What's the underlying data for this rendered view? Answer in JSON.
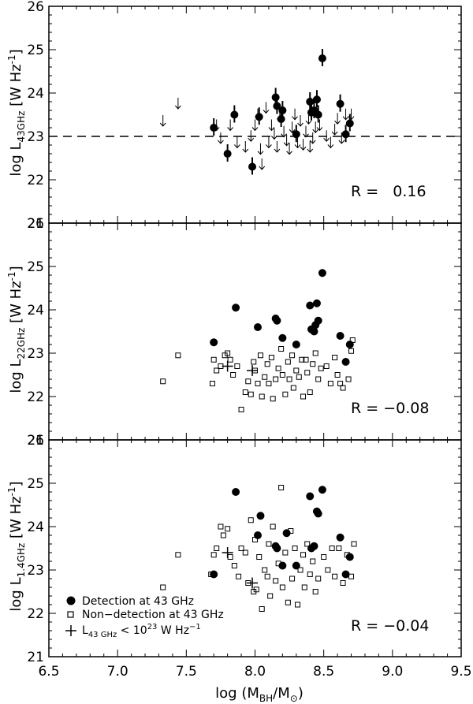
{
  "chart_data": {
    "type": "scatter",
    "xlabel_parts": [
      "log (M",
      "BH",
      "/M",
      "⊙",
      ")"
    ],
    "xlim": [
      6.5,
      9.5
    ],
    "x_ticks": [
      "6.5",
      "7.0",
      "7.5",
      "8.0",
      "8.5",
      "9.0",
      "9.5"
    ],
    "x_tick_values": [
      6.5,
      7.0,
      7.5,
      8.0,
      8.5,
      9.0,
      9.5
    ],
    "panels": [
      {
        "name": "43GHz",
        "ylabel_parts": [
          "log L",
          "43GHz",
          " [W Hz",
          "-1",
          "]"
        ],
        "ylim": [
          21,
          26
        ],
        "y_ticks": [
          "21",
          "22",
          "23",
          "24",
          "25",
          "26"
        ],
        "y_tick_values": [
          21,
          22,
          23,
          24,
          25,
          26
        ],
        "r_label": "R =   0.16",
        "threshold_line": 23.0,
        "detections": [
          [
            7.7,
            23.2
          ],
          [
            7.8,
            22.6
          ],
          [
            7.85,
            23.5
          ],
          [
            7.98,
            22.3
          ],
          [
            8.03,
            23.45
          ],
          [
            8.15,
            23.9
          ],
          [
            8.16,
            23.7
          ],
          [
            8.19,
            23.4
          ],
          [
            8.2,
            23.6
          ],
          [
            8.3,
            23.05
          ],
          [
            8.4,
            23.8
          ],
          [
            8.41,
            23.55
          ],
          [
            8.43,
            23.6
          ],
          [
            8.45,
            23.85
          ],
          [
            8.46,
            23.5
          ],
          [
            8.49,
            24.8
          ],
          [
            8.62,
            23.75
          ],
          [
            8.66,
            23.05
          ],
          [
            8.69,
            23.3
          ]
        ],
        "upper_limits": [
          [
            7.33,
            23.4
          ],
          [
            7.44,
            23.8
          ],
          [
            7.72,
            23.3
          ],
          [
            7.75,
            23.0
          ],
          [
            7.82,
            23.3
          ],
          [
            7.87,
            22.9
          ],
          [
            7.93,
            22.8
          ],
          [
            7.97,
            23.05
          ],
          [
            8.0,
            23.3
          ],
          [
            8.02,
            23.55
          ],
          [
            8.04,
            22.75
          ],
          [
            8.05,
            22.4
          ],
          [
            8.08,
            23.7
          ],
          [
            8.1,
            22.9
          ],
          [
            8.12,
            23.3
          ],
          [
            8.14,
            23.1
          ],
          [
            8.16,
            22.8
          ],
          [
            8.18,
            23.5
          ],
          [
            8.21,
            23.15
          ],
          [
            8.23,
            22.95
          ],
          [
            8.25,
            22.75
          ],
          [
            8.27,
            23.25
          ],
          [
            8.29,
            23.55
          ],
          [
            8.31,
            22.9
          ],
          [
            8.33,
            23.4
          ],
          [
            8.35,
            22.85
          ],
          [
            8.37,
            23.15
          ],
          [
            8.39,
            23.45
          ],
          [
            8.4,
            22.8
          ],
          [
            8.42,
            23.0
          ],
          [
            8.44,
            23.25
          ],
          [
            8.47,
            23.3
          ],
          [
            8.52,
            23.05
          ],
          [
            8.55,
            22.9
          ],
          [
            8.58,
            23.2
          ],
          [
            8.6,
            23.45
          ],
          [
            8.63,
            23.0
          ],
          [
            8.66,
            23.55
          ],
          [
            8.7,
            23.55
          ]
        ]
      },
      {
        "name": "22GHz",
        "ylabel_parts": [
          "log L",
          "22GHz",
          " [W Hz",
          "-1",
          "]"
        ],
        "ylim": [
          21,
          26
        ],
        "y_ticks": [
          "21",
          "22",
          "23",
          "24",
          "25",
          "26"
        ],
        "y_tick_values": [
          21,
          22,
          23,
          24,
          25,
          26
        ],
        "r_label": "R = −0.08",
        "detections": [
          [
            7.7,
            23.25
          ],
          [
            7.86,
            24.05
          ],
          [
            8.02,
            23.6
          ],
          [
            8.15,
            23.8
          ],
          [
            8.16,
            23.75
          ],
          [
            8.2,
            23.35
          ],
          [
            8.3,
            23.2
          ],
          [
            8.4,
            24.1
          ],
          [
            8.41,
            23.55
          ],
          [
            8.43,
            23.5
          ],
          [
            8.44,
            23.65
          ],
          [
            8.45,
            24.15
          ],
          [
            8.46,
            23.75
          ],
          [
            8.49,
            24.85
          ],
          [
            8.62,
            23.4
          ],
          [
            8.66,
            22.8
          ],
          [
            8.69,
            23.2
          ]
        ],
        "non_detections": [
          [
            7.33,
            22.35
          ],
          [
            7.44,
            22.95
          ],
          [
            7.69,
            22.3
          ],
          [
            7.7,
            22.85
          ],
          [
            7.72,
            22.6
          ],
          [
            7.75,
            22.7
          ],
          [
            7.78,
            22.95
          ],
          [
            7.8,
            23.0
          ],
          [
            7.82,
            22.85
          ],
          [
            7.84,
            22.5
          ],
          [
            7.87,
            22.7
          ],
          [
            7.9,
            21.7
          ],
          [
            7.93,
            22.1
          ],
          [
            7.95,
            22.35
          ],
          [
            7.97,
            22.05
          ],
          [
            7.99,
            22.8
          ],
          [
            8.0,
            22.6
          ],
          [
            8.02,
            22.3
          ],
          [
            8.04,
            22.95
          ],
          [
            8.05,
            22.0
          ],
          [
            8.07,
            22.45
          ],
          [
            8.09,
            22.75
          ],
          [
            8.1,
            22.3
          ],
          [
            8.12,
            22.9
          ],
          [
            8.13,
            21.95
          ],
          [
            8.15,
            22.4
          ],
          [
            8.17,
            22.65
          ],
          [
            8.19,
            23.1
          ],
          [
            8.2,
            22.5
          ],
          [
            8.22,
            22.05
          ],
          [
            8.24,
            22.8
          ],
          [
            8.25,
            22.4
          ],
          [
            8.27,
            22.95
          ],
          [
            8.28,
            22.2
          ],
          [
            8.3,
            22.6
          ],
          [
            8.32,
            22.45
          ],
          [
            8.34,
            22.85
          ],
          [
            8.35,
            22.0
          ],
          [
            8.37,
            22.85
          ],
          [
            8.38,
            22.55
          ],
          [
            8.4,
            22.1
          ],
          [
            8.42,
            22.75
          ],
          [
            8.44,
            23.0
          ],
          [
            8.46,
            22.4
          ],
          [
            8.48,
            22.65
          ],
          [
            8.52,
            22.7
          ],
          [
            8.55,
            22.3
          ],
          [
            8.58,
            22.9
          ],
          [
            8.6,
            22.5
          ],
          [
            8.62,
            22.3
          ],
          [
            8.64,
            22.2
          ],
          [
            8.68,
            22.4
          ],
          [
            8.7,
            23.05
          ],
          [
            8.71,
            23.3
          ]
        ],
        "limit_crosses": [
          [
            7.8,
            22.7
          ],
          [
            7.98,
            22.6
          ]
        ]
      },
      {
        "name": "1.4GHz",
        "ylabel_parts": [
          "log L",
          "1.4GHz",
          " [W Hz",
          "-1",
          "]"
        ],
        "ylim": [
          21,
          26
        ],
        "y_ticks": [
          "21",
          "22",
          "23",
          "24",
          "25",
          "26"
        ],
        "y_tick_values": [
          21,
          22,
          23,
          24,
          25,
          26
        ],
        "r_label": "R = −0.04",
        "detections": [
          [
            7.7,
            22.9
          ],
          [
            7.86,
            24.8
          ],
          [
            8.02,
            23.8
          ],
          [
            8.04,
            24.25
          ],
          [
            8.15,
            23.55
          ],
          [
            8.16,
            23.5
          ],
          [
            8.2,
            23.1
          ],
          [
            8.23,
            23.85
          ],
          [
            8.3,
            23.1
          ],
          [
            8.4,
            24.7
          ],
          [
            8.41,
            23.5
          ],
          [
            8.43,
            23.55
          ],
          [
            8.45,
            24.35
          ],
          [
            8.46,
            24.3
          ],
          [
            8.49,
            24.85
          ],
          [
            8.62,
            23.75
          ],
          [
            8.66,
            22.9
          ],
          [
            8.69,
            23.3
          ]
        ],
        "non_detections": [
          [
            7.33,
            22.6
          ],
          [
            7.44,
            23.35
          ],
          [
            7.68,
            22.9
          ],
          [
            7.7,
            23.35
          ],
          [
            7.72,
            23.5
          ],
          [
            7.75,
            24.0
          ],
          [
            7.77,
            23.8
          ],
          [
            7.8,
            23.95
          ],
          [
            7.82,
            23.3
          ],
          [
            7.85,
            23.1
          ],
          [
            7.88,
            22.85
          ],
          [
            7.9,
            23.5
          ],
          [
            7.93,
            23.4
          ],
          [
            7.95,
            22.7
          ],
          [
            7.97,
            24.15
          ],
          [
            7.99,
            22.5
          ],
          [
            8.0,
            23.7
          ],
          [
            8.01,
            22.55
          ],
          [
            8.03,
            23.3
          ],
          [
            8.05,
            22.1
          ],
          [
            8.07,
            23.0
          ],
          [
            8.09,
            22.85
          ],
          [
            8.1,
            23.6
          ],
          [
            8.11,
            22.4
          ],
          [
            8.13,
            24.0
          ],
          [
            8.15,
            22.75
          ],
          [
            8.17,
            23.15
          ],
          [
            8.19,
            24.9
          ],
          [
            8.2,
            22.6
          ],
          [
            8.22,
            23.4
          ],
          [
            8.24,
            22.25
          ],
          [
            8.26,
            23.9
          ],
          [
            8.27,
            22.8
          ],
          [
            8.29,
            23.5
          ],
          [
            8.31,
            22.2
          ],
          [
            8.33,
            23.0
          ],
          [
            8.35,
            23.35
          ],
          [
            8.36,
            22.6
          ],
          [
            8.38,
            23.6
          ],
          [
            8.4,
            22.9
          ],
          [
            8.42,
            23.2
          ],
          [
            8.44,
            22.5
          ],
          [
            8.46,
            22.8
          ],
          [
            8.5,
            23.3
          ],
          [
            8.53,
            23.0
          ],
          [
            8.56,
            23.5
          ],
          [
            8.58,
            22.85
          ],
          [
            8.61,
            23.5
          ],
          [
            8.64,
            22.7
          ],
          [
            8.67,
            23.35
          ],
          [
            8.7,
            22.85
          ],
          [
            8.72,
            23.6
          ]
        ],
        "limit_crosses": [
          [
            7.8,
            23.4
          ],
          [
            7.98,
            22.7
          ]
        ]
      }
    ],
    "legend": {
      "placement": "bottom-left of bottom panel",
      "entries": [
        {
          "symbol": "filled-circle",
          "label": "Detection at 43 GHz"
        },
        {
          "symbol": "open-square",
          "label": "Non−detection at 43 GHz"
        },
        {
          "symbol": "cross",
          "label_parts": [
            "L",
            "43 GHz",
            " < 10",
            "23",
            " W Hz",
            "−1"
          ]
        }
      ]
    },
    "grid": false
  }
}
